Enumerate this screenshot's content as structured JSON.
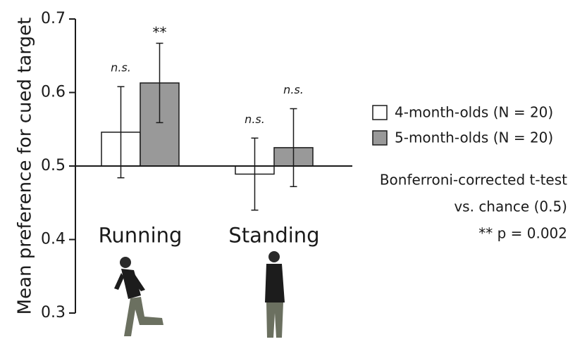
{
  "chart_data": {
    "type": "bar",
    "ylabel": "Mean preference for cued target",
    "categories": [
      "Running",
      "Standing"
    ],
    "series": [
      {
        "name": "4-month-olds (N = 20)",
        "color": "#ffffff",
        "values": [
          0.546,
          0.489
        ],
        "errors": [
          0.062,
          0.049
        ],
        "significance": [
          "n.s.",
          "n.s."
        ]
      },
      {
        "name": "5-month-olds (N = 20)",
        "color": "#999999",
        "values": [
          0.613,
          0.525
        ],
        "errors": [
          0.054,
          0.053
        ],
        "significance": [
          "**",
          "n.s."
        ]
      }
    ],
    "baseline": 0.5,
    "ylim": [
      0.3,
      0.7
    ],
    "yticks": [
      0.3,
      0.4,
      0.5,
      0.6,
      0.7
    ],
    "legend": "right",
    "notes": [
      "Bonferroni-corrected t-test",
      "vs. chance (0.5)",
      "** p = 0.002"
    ]
  }
}
